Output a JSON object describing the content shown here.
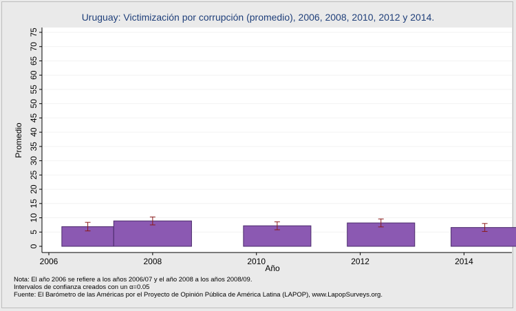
{
  "chart_data": {
    "type": "bar",
    "title": "Uruguay: Victimización por corrupción (promedio), 2006, 2008, 2010, 2012 y 2014.",
    "xlabel": "Año",
    "ylabel": "Promedio",
    "x_ticks": [
      2006,
      2008,
      2010,
      2012,
      2014
    ],
    "y_ticks": [
      0,
      5,
      10,
      15,
      20,
      25,
      30,
      35,
      40,
      45,
      50,
      55,
      60,
      65,
      70,
      75
    ],
    "xlim": [
      2006,
      2014.75
    ],
    "ylim": [
      0,
      77
    ],
    "grid": true,
    "bars": [
      {
        "period": "2006/07",
        "x_start": 2006.25,
        "x_end": 2007.25,
        "value": 6.9,
        "ci_low": 5.4,
        "ci_high": 8.4
      },
      {
        "period": "2008/09",
        "x_start": 2007.25,
        "x_end": 2008.75,
        "value": 8.9,
        "ci_low": 7.5,
        "ci_high": 10.3
      },
      {
        "period": "2010",
        "x_start": 2009.75,
        "x_end": 2011.05,
        "value": 7.2,
        "ci_low": 5.8,
        "ci_high": 8.6
      },
      {
        "period": "2012",
        "x_start": 2011.75,
        "x_end": 2013.05,
        "value": 8.2,
        "ci_low": 6.8,
        "ci_high": 9.6
      },
      {
        "period": "2014",
        "x_start": 2013.75,
        "x_end": 2015.05,
        "value": 6.6,
        "ci_low": 5.2,
        "ci_high": 8.0
      }
    ],
    "colors": {
      "bar_fill": "#8b59b2",
      "bar_stroke": "#4a2a6a",
      "error_bar": "#8b1a1a",
      "grid": "#f2f2f2",
      "plot_bg": "#ffffff",
      "title": "#1f3f7a"
    }
  },
  "notes": [
    "Nota: El año 2006 se refiere a los años 2006/07 y el año 2008 a los años 2008/09.",
    "Intervalos de confianza creados con un α=0.05",
    "Fuente: El Barómetro de las Américas por el Proyecto de Opinión Pública de América Latina (LAPOP), www.LapopSurveys.org."
  ]
}
